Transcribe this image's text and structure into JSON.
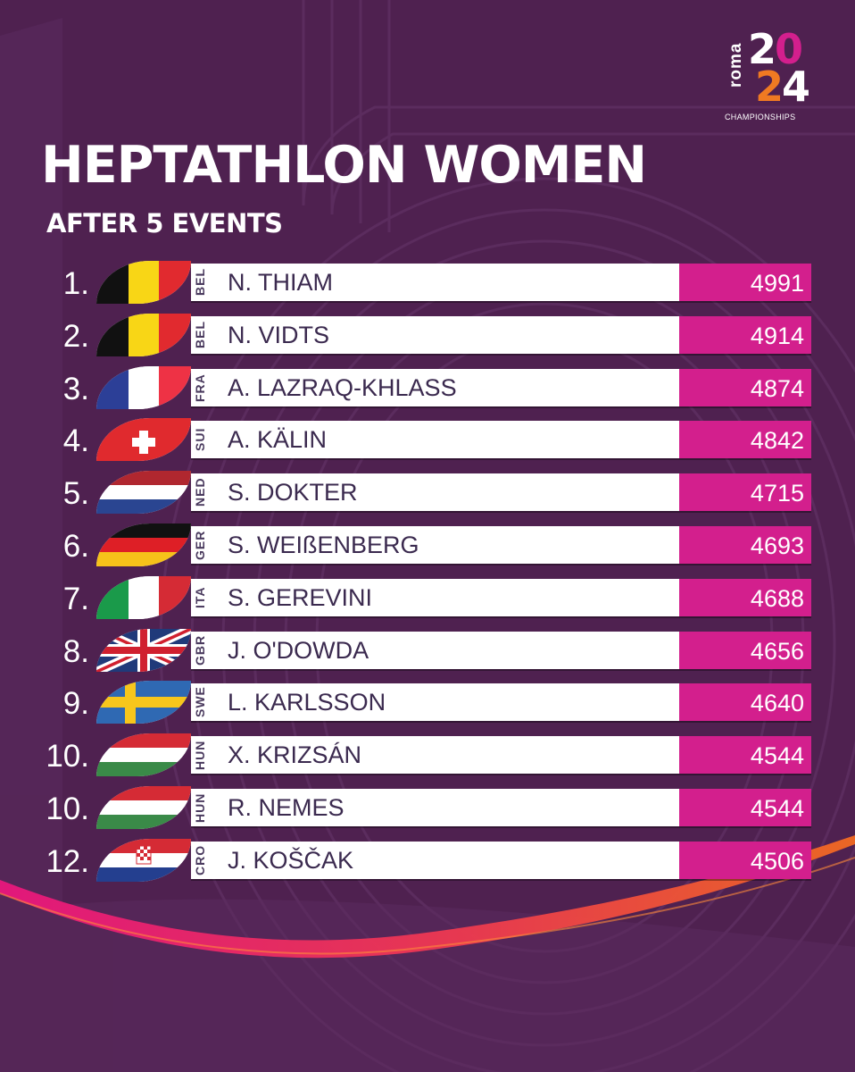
{
  "logo": {
    "word": "roma",
    "digits": [
      "2",
      "0",
      "2",
      "4"
    ],
    "caption": "CHAMPIONSHIPS",
    "colors": {
      "digit_white": "#ffffff",
      "digit_magenta": "#d31f8d",
      "digit_orange": "#f07a22"
    }
  },
  "header": {
    "title": "HEPTATHLON WOMEN",
    "subtitle": "AFTER 5 EVENTS"
  },
  "colors": {
    "background": "#4f2150",
    "score_box": "#d31f8d",
    "name_bar": "#ffffff",
    "swoosh": [
      "#f05a28",
      "#e8177d"
    ]
  },
  "standings": [
    {
      "rank": "1.",
      "flag": "belgium-flag",
      "code": "BEL",
      "name": "N. THIAM",
      "points": "4991"
    },
    {
      "rank": "2.",
      "flag": "belgium-flag",
      "code": "BEL",
      "name": "N. VIDTS",
      "points": "4914"
    },
    {
      "rank": "3.",
      "flag": "france-flag",
      "code": "FRA",
      "name": "A. LAZRAQ-KHLASS",
      "points": "4874"
    },
    {
      "rank": "4.",
      "flag": "switzerland-flag",
      "code": "SUI",
      "name": "A. KÄLIN",
      "points": "4842"
    },
    {
      "rank": "5.",
      "flag": "netherlands-flag",
      "code": "NED",
      "name": "S. DOKTER",
      "points": "4715"
    },
    {
      "rank": "6.",
      "flag": "germany-flag",
      "code": "GER",
      "name": "S. WEIßENBERG",
      "points": "4693"
    },
    {
      "rank": "7.",
      "flag": "italy-flag",
      "code": "ITA",
      "name": "S. GEREVINI",
      "points": "4688"
    },
    {
      "rank": "8.",
      "flag": "great-britain-flag",
      "code": "GBR",
      "name": "J. O'DOWDA",
      "points": "4656"
    },
    {
      "rank": "9.",
      "flag": "sweden-flag",
      "code": "SWE",
      "name": "L. KARLSSON",
      "points": "4640"
    },
    {
      "rank": "10.",
      "flag": "hungary-flag",
      "code": "HUN",
      "name": "X. KRIZSÁN",
      "points": "4544"
    },
    {
      "rank": "10.",
      "flag": "hungary-flag",
      "code": "HUN",
      "name": "R. NEMES",
      "points": "4544"
    },
    {
      "rank": "12.",
      "flag": "croatia-flag",
      "code": "CRO",
      "name": "J. KOŠČAK",
      "points": "4506"
    }
  ]
}
